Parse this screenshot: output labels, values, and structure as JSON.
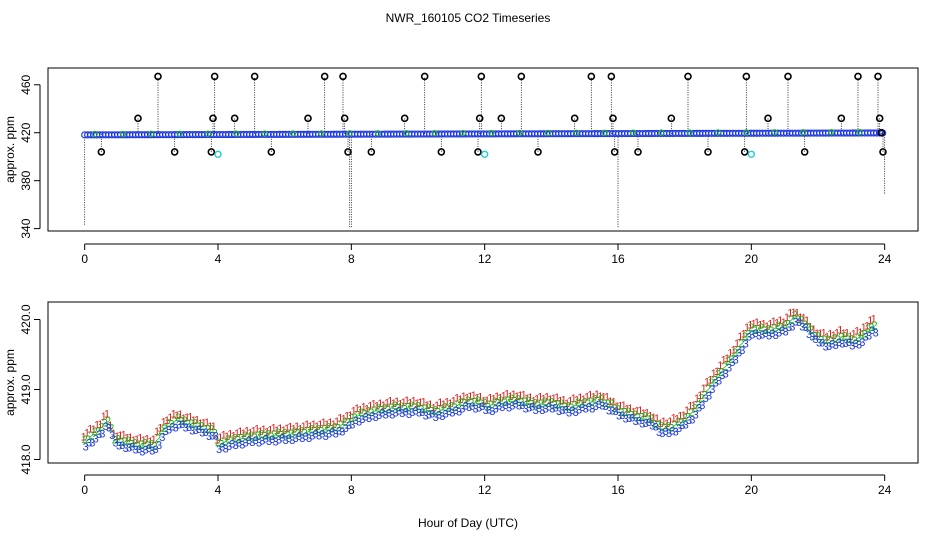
{
  "figure": {
    "title": "NWR_160105  CO2 Timeseries",
    "xlabel": "Hour of Day (UTC)"
  },
  "chart_data": [
    {
      "type": "scatter",
      "name": "top-panel",
      "title": "NWR_160105  CO2 Timeseries",
      "xlabel": "",
      "ylabel": "approx. ppm",
      "xlim": [
        -1.1,
        25
      ],
      "ylim": [
        338,
        474
      ],
      "xticks": [
        0,
        4,
        8,
        12,
        16,
        20,
        24
      ],
      "xtick_labels": [
        "0",
        "4",
        "8",
        "12",
        "16",
        "20",
        "24"
      ],
      "yticks": [
        340,
        380,
        420,
        460
      ],
      "ytick_labels": [
        "340",
        "380",
        "420",
        "460"
      ],
      "colors": {
        "baseline": "#1f3ae0",
        "accent_green": "#22bb22",
        "outlier": "#000000",
        "cyan": "#22cccc"
      },
      "baseline": {
        "x_start": 0,
        "x_end": 24,
        "y_start": 418.2,
        "y_end": 419.8
      },
      "outliers": [
        {
          "x": 0.5,
          "y": 404
        },
        {
          "x": 1.6,
          "y": 432
        },
        {
          "x": 2.2,
          "y": 467
        },
        {
          "x": 2.7,
          "y": 404
        },
        {
          "x": 3.8,
          "y": 404
        },
        {
          "x": 3.85,
          "y": 432
        },
        {
          "x": 3.9,
          "y": 467
        },
        {
          "x": 4.5,
          "y": 432
        },
        {
          "x": 5.1,
          "y": 467
        },
        {
          "x": 5.6,
          "y": 404
        },
        {
          "x": 6.7,
          "y": 432
        },
        {
          "x": 7.2,
          "y": 467
        },
        {
          "x": 7.75,
          "y": 467
        },
        {
          "x": 7.8,
          "y": 432
        },
        {
          "x": 7.9,
          "y": 404
        },
        {
          "x": 8.6,
          "y": 404
        },
        {
          "x": 9.6,
          "y": 432
        },
        {
          "x": 10.2,
          "y": 467
        },
        {
          "x": 10.7,
          "y": 404
        },
        {
          "x": 11.8,
          "y": 404
        },
        {
          "x": 11.85,
          "y": 432
        },
        {
          "x": 11.9,
          "y": 467
        },
        {
          "x": 12.5,
          "y": 432
        },
        {
          "x": 13.1,
          "y": 467
        },
        {
          "x": 13.6,
          "y": 404
        },
        {
          "x": 14.7,
          "y": 432
        },
        {
          "x": 15.2,
          "y": 467
        },
        {
          "x": 15.8,
          "y": 467
        },
        {
          "x": 15.85,
          "y": 432
        },
        {
          "x": 15.9,
          "y": 404
        },
        {
          "x": 16.6,
          "y": 404
        },
        {
          "x": 17.6,
          "y": 432
        },
        {
          "x": 18.1,
          "y": 467
        },
        {
          "x": 18.7,
          "y": 404
        },
        {
          "x": 19.8,
          "y": 404
        },
        {
          "x": 19.85,
          "y": 467
        },
        {
          "x": 20.5,
          "y": 432
        },
        {
          "x": 21.1,
          "y": 467
        },
        {
          "x": 21.6,
          "y": 404
        },
        {
          "x": 22.7,
          "y": 432
        },
        {
          "x": 23.2,
          "y": 467
        },
        {
          "x": 23.8,
          "y": 467
        },
        {
          "x": 23.85,
          "y": 432
        },
        {
          "x": 23.9,
          "y": 420
        },
        {
          "x": 23.95,
          "y": 404
        }
      ],
      "cyan_points": [
        {
          "x": 4.0,
          "y": 402
        },
        {
          "x": 12.0,
          "y": 402
        },
        {
          "x": 20.0,
          "y": 402
        }
      ],
      "down_spikes": [
        {
          "x": 0.0,
          "y": 343
        },
        {
          "x": 7.95,
          "y": 341
        },
        {
          "x": 8.0,
          "y": 341
        },
        {
          "x": 16.0,
          "y": 341
        },
        {
          "x": 24.0,
          "y": 368
        }
      ]
    },
    {
      "type": "scatter",
      "name": "bottom-panel",
      "xlabel": "Hour of Day (UTC)",
      "ylabel": "approx. ppm",
      "xlim": [
        -1.1,
        25
      ],
      "ylim": [
        417.95,
        420.25
      ],
      "xticks": [
        0,
        4,
        8,
        12,
        16,
        20,
        24
      ],
      "xtick_labels": [
        "0",
        "4",
        "8",
        "12",
        "16",
        "20",
        "24"
      ],
      "yticks": [
        418.0,
        419.0,
        420.0
      ],
      "ytick_labels": [
        "418.0",
        "419.0",
        "420.0"
      ],
      "series": [
        {
          "name": "1",
          "color": "#e02020",
          "offset": 0.07
        },
        {
          "name": "2",
          "color": "#22bb22",
          "offset": 0.0
        },
        {
          "name": "3",
          "color": "#1f3ae0",
          "offset": -0.08
        }
      ],
      "series_step_hours": 0.1,
      "profile": [
        [
          0,
          418.28
        ],
        [
          0.3,
          418.38
        ],
        [
          0.55,
          418.48
        ],
        [
          0.65,
          418.62
        ],
        [
          0.75,
          418.5
        ],
        [
          0.9,
          418.3
        ],
        [
          1.6,
          418.22
        ],
        [
          2.1,
          418.22
        ],
        [
          2.3,
          418.4
        ],
        [
          2.5,
          418.52
        ],
        [
          2.8,
          418.58
        ],
        [
          3.2,
          418.52
        ],
        [
          3.6,
          418.46
        ],
        [
          3.9,
          418.4
        ],
        [
          4.0,
          418.24
        ],
        [
          4.5,
          418.3
        ],
        [
          5.0,
          418.34
        ],
        [
          5.6,
          418.36
        ],
        [
          6.2,
          418.38
        ],
        [
          6.8,
          418.42
        ],
        [
          7.5,
          418.46
        ],
        [
          7.9,
          418.55
        ],
        [
          8.1,
          418.63
        ],
        [
          8.6,
          418.7
        ],
        [
          9.2,
          418.75
        ],
        [
          10.0,
          418.76
        ],
        [
          10.5,
          418.7
        ],
        [
          11.0,
          418.76
        ],
        [
          11.5,
          418.84
        ],
        [
          11.9,
          418.82
        ],
        [
          12.1,
          418.78
        ],
        [
          12.5,
          418.84
        ],
        [
          13.0,
          418.86
        ],
        [
          13.5,
          418.8
        ],
        [
          14.0,
          418.82
        ],
        [
          14.5,
          418.76
        ],
        [
          15.0,
          418.82
        ],
        [
          15.5,
          418.86
        ],
        [
          15.8,
          418.78
        ],
        [
          16.0,
          418.72
        ],
        [
          16.5,
          418.64
        ],
        [
          17.0,
          418.58
        ],
        [
          17.3,
          418.46
        ],
        [
          17.6,
          418.48
        ],
        [
          17.9,
          418.55
        ],
        [
          18.3,
          418.72
        ],
        [
          18.6,
          418.95
        ],
        [
          19.0,
          419.22
        ],
        [
          19.4,
          419.45
        ],
        [
          19.8,
          419.74
        ],
        [
          20.0,
          419.88
        ],
        [
          20.5,
          419.86
        ],
        [
          21.0,
          419.92
        ],
        [
          21.3,
          420.05
        ],
        [
          21.6,
          419.96
        ],
        [
          21.9,
          419.78
        ],
        [
          22.3,
          419.7
        ],
        [
          22.7,
          419.76
        ],
        [
          23.0,
          419.72
        ],
        [
          23.3,
          419.76
        ],
        [
          23.6,
          419.92
        ],
        [
          23.75,
          419.92
        ]
      ]
    }
  ]
}
